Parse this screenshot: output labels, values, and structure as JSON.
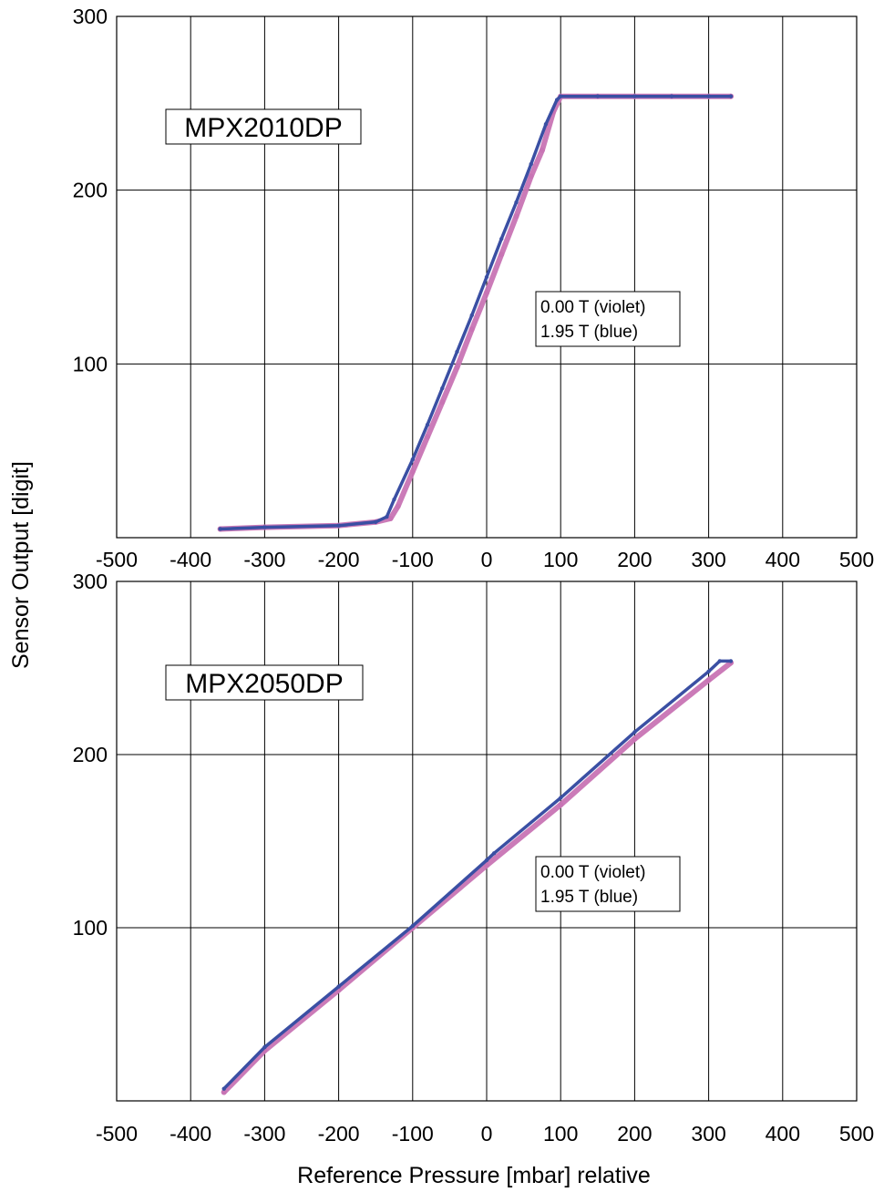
{
  "figure": {
    "ylabel": "Sensor Output [digit]",
    "xlabel": "Reference Pressure [mbar] relative"
  },
  "chart_data": [
    {
      "type": "scatter",
      "annotation": "MPX2010DP",
      "legend_lines": [
        "0.00 T (violet)",
        "1.95 T (blue)"
      ],
      "xlim": [
        -500,
        500
      ],
      "ylim": [
        0,
        300
      ],
      "x_ticks": [
        -500,
        -400,
        -300,
        -200,
        -100,
        0,
        100,
        200,
        300,
        400,
        500
      ],
      "y_ticks": [
        100,
        200,
        300
      ],
      "grid": true,
      "series": [
        {
          "name": "0.00 T (violet)",
          "color": "#c874b4",
          "x": [
            -360,
            -300,
            -200,
            -150,
            -130,
            -120,
            -100,
            -80,
            -60,
            -40,
            -20,
            0,
            20,
            40,
            60,
            75,
            90,
            100,
            150,
            200,
            250,
            300,
            330
          ],
          "y": [
            5,
            6,
            7,
            9,
            11,
            18,
            38,
            58,
            78,
            98,
            120,
            141,
            163,
            185,
            208,
            223,
            245,
            254,
            254,
            254,
            254,
            254,
            254
          ]
        },
        {
          "name": "1.95 T (blue)",
          "color": "#3a4fa3",
          "x": [
            -360,
            -300,
            -200,
            -150,
            -135,
            -125,
            -100,
            -80,
            -60,
            -40,
            -20,
            0,
            20,
            40,
            60,
            80,
            95,
            100,
            150,
            200,
            250,
            300,
            330
          ],
          "y": [
            5,
            6,
            7,
            9,
            12,
            22,
            45,
            65,
            86,
            107,
            128,
            150,
            172,
            193,
            215,
            238,
            252,
            254,
            254,
            254,
            254,
            254,
            254
          ]
        }
      ]
    },
    {
      "type": "scatter",
      "annotation": "MPX2050DP",
      "legend_lines": [
        "0.00 T (violet)",
        "1.95 T (blue)"
      ],
      "xlim": [
        -500,
        500
      ],
      "ylim": [
        0,
        300
      ],
      "x_ticks": [
        -500,
        -400,
        -300,
        -200,
        -100,
        0,
        100,
        200,
        300,
        400,
        500
      ],
      "y_ticks": [
        100,
        200,
        300
      ],
      "grid": true,
      "series": [
        {
          "name": "0.00 T (violet)",
          "color": "#c874b4",
          "x": [
            -355,
            -300,
            -200,
            -100,
            0,
            100,
            200,
            300,
            330
          ],
          "y": [
            5,
            29,
            64,
            100,
            136,
            171,
            209,
            243,
            253
          ]
        },
        {
          "name": "1.95 T (blue)",
          "color": "#3a4fa3",
          "x": [
            -355,
            -300,
            -200,
            -100,
            0,
            10,
            100,
            200,
            300,
            315,
            330
          ],
          "y": [
            7,
            31,
            66,
            101,
            139,
            143,
            175,
            213,
            248,
            254,
            254
          ]
        }
      ]
    }
  ]
}
